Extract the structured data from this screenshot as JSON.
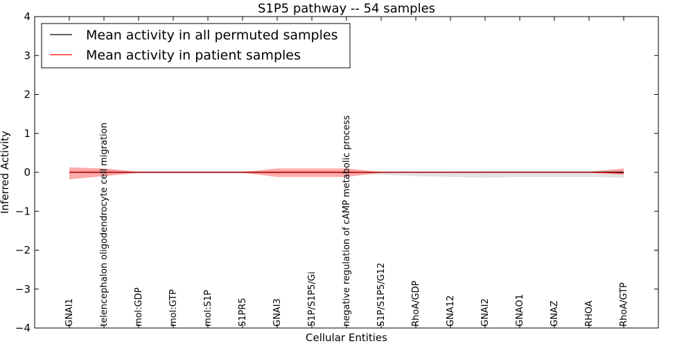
{
  "chart_data": {
    "type": "line",
    "title": "S1P5 pathway -- 54 samples",
    "xlabel": "Cellular Entities",
    "ylabel": "Inferred Activity",
    "ylim": [
      -4,
      4
    ],
    "yticks": [
      "−4",
      "−3",
      "−2",
      "−1",
      "0",
      "1",
      "2",
      "3",
      "4"
    ],
    "categories": [
      "GNAI1",
      "telencephalon oligodendrocyte cell migration",
      "mol:GDP",
      "mol:GTP",
      "mol:S1P",
      "S1PR5",
      "GNAI3",
      "S1P/S1P5/Gi",
      "negative regulation of cAMP metabolic process",
      "S1P/S1P5/G12",
      "RhoA/GDP",
      "GNA12",
      "GNAI2",
      "GNAO1",
      "GNAZ",
      "RHOA",
      "RhoA/GTP"
    ],
    "legend_position": "top-left",
    "grid": false,
    "series": [
      {
        "name": "Mean activity in all permuted samples",
        "color": "#000000",
        "values": [
          0,
          0,
          0,
          0,
          0,
          0,
          0,
          0,
          0,
          0,
          0,
          0,
          0,
          0,
          0,
          0,
          0
        ],
        "band_upper": [
          0.02,
          0.09,
          0.03,
          0.03,
          0.03,
          0.03,
          0.04,
          0.04,
          0.04,
          0.02,
          0.03,
          0.03,
          0.05,
          0.05,
          0.05,
          0.05,
          0.05
        ],
        "band_lower": [
          -0.02,
          -0.05,
          -0.03,
          -0.03,
          -0.03,
          -0.03,
          -0.04,
          -0.04,
          -0.04,
          -0.06,
          -0.1,
          -0.12,
          -0.14,
          -0.12,
          -0.12,
          -0.12,
          -0.14
        ],
        "band_color": "#c8c8c8"
      },
      {
        "name": "Mean activity in patient samples",
        "color": "#ff0000",
        "values": [
          0,
          0,
          0,
          0,
          0,
          0,
          0,
          0,
          0,
          0,
          0,
          0,
          0,
          0,
          0,
          0,
          -0.02
        ],
        "band_upper": [
          0.13,
          0.1,
          0.01,
          0.01,
          0.01,
          0.01,
          0.1,
          0.1,
          0.1,
          0.01,
          0.01,
          0.01,
          0.01,
          0.01,
          0.01,
          0.01,
          0.1
        ],
        "band_lower": [
          -0.18,
          -0.1,
          -0.01,
          -0.01,
          -0.01,
          -0.01,
          -0.12,
          -0.12,
          -0.12,
          -0.01,
          -0.01,
          -0.01,
          -0.01,
          -0.01,
          -0.01,
          -0.01,
          -0.06
        ],
        "band_color": "#ff6666"
      }
    ]
  }
}
